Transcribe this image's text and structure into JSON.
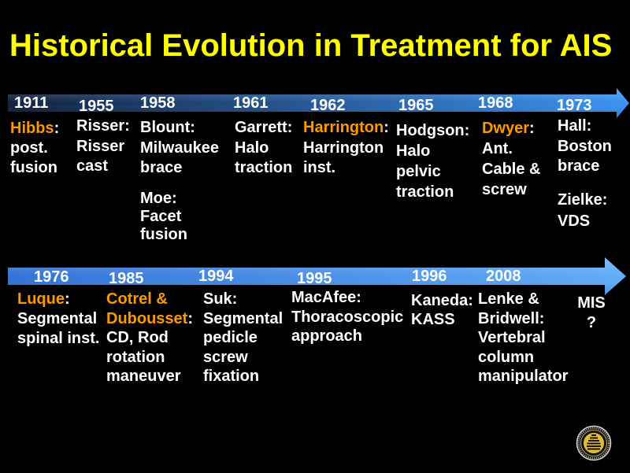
{
  "slide": {
    "title": "Historical Evolution in Treatment for AIS"
  },
  "colors": {
    "background": "#000000",
    "title": "#ffff00",
    "text": "#ffffff",
    "highlight": "#ff9900",
    "arrow1_start": "#0a1a3a",
    "arrow1_end": "#3390f2",
    "arrow2_start": "#2d6fd6",
    "arrow2_end": "#5cabf9"
  },
  "timeline_1": [
    {
      "year": "1911",
      "name": "Hibbs",
      "suffix": ":",
      "highlight": true,
      "detail": [
        "post.",
        "fusion"
      ]
    },
    {
      "year": "1955",
      "name": "Risser:",
      "detail": [
        "Risser",
        "cast"
      ]
    },
    {
      "year": "1958",
      "name": "Blount:",
      "detail": [
        "Milwaukee",
        "brace"
      ],
      "also": {
        "name": "Moe:",
        "detail": [
          "Facet",
          "fusion"
        ]
      }
    },
    {
      "year": "1961",
      "name": "Garrett:",
      "detail": [
        "Halo",
        "traction"
      ]
    },
    {
      "year": "1962",
      "name": "Harrington",
      "suffix": ":",
      "highlight": true,
      "detail": [
        "Harrington",
        "inst."
      ]
    },
    {
      "year": "1965",
      "name": "Hodgson:",
      "detail": [
        "Halo",
        "pelvic",
        "traction"
      ]
    },
    {
      "year": "1968",
      "name": "Dwyer",
      "suffix": ":",
      "highlight": true,
      "detail": [
        "Ant.",
        "Cable &",
        "screw"
      ]
    },
    {
      "year": "1973",
      "name": "Hall:",
      "detail": [
        "Boston",
        "brace"
      ],
      "also": {
        "name": "Zielke:",
        "detail": [
          "VDS"
        ]
      }
    }
  ],
  "timeline_2": [
    {
      "year": "1976",
      "name": "Luque",
      "suffix": ":",
      "highlight": true,
      "detail": [
        "Segmental",
        "spinal inst."
      ]
    },
    {
      "year": "1985",
      "name": "Cotrel &",
      "name_line2": "Dubousset",
      "suffix": ":",
      "highlight": true,
      "detail": [
        "CD, Rod",
        "rotation",
        "maneuver"
      ]
    },
    {
      "year": "1994",
      "name": "Suk:",
      "detail": [
        "Segmental",
        "pedicle",
        "screw",
        "fixation"
      ]
    },
    {
      "year": "1995",
      "name": "MacAfee:",
      "detail": [
        "Thoracoscopic",
        "approach"
      ]
    },
    {
      "year": "1996",
      "name": "Kaneda:",
      "detail": [
        "KASS"
      ]
    },
    {
      "year": "2008",
      "name": "Lenke &",
      "name_line2": "Bridwell:",
      "detail": [
        "Vertebral",
        "column",
        "manipulator"
      ]
    },
    {
      "name": "MIS",
      "detail": [
        "?"
      ]
    }
  ]
}
